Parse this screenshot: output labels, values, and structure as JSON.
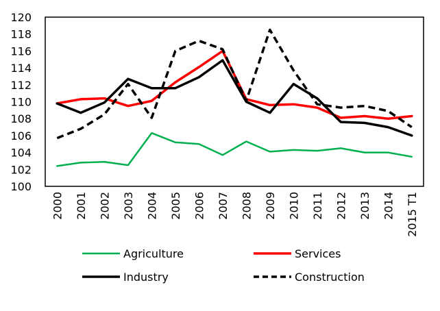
{
  "chart_data": {
    "type": "line",
    "title": "",
    "xlabel": "",
    "ylabel": "",
    "ylim": [
      100,
      120
    ],
    "yticks": [
      100,
      102,
      104,
      106,
      108,
      110,
      112,
      114,
      116,
      118,
      120
    ],
    "grid": false,
    "legend_position": "bottom",
    "categories": [
      "2000",
      "2001",
      "2002",
      "2003",
      "2004",
      "2005",
      "2006",
      "2007",
      "2008",
      "2009",
      "2010",
      "2011",
      "2012",
      "2013",
      "2014",
      "2015 T1"
    ],
    "series": [
      {
        "name": "Agriculture",
        "color": "#00B050",
        "dash": "solid",
        "values": [
          102.4,
          102.8,
          102.9,
          102.5,
          106.3,
          105.2,
          105.0,
          103.7,
          105.3,
          104.1,
          104.3,
          104.2,
          104.5,
          104.0,
          104.0,
          103.5
        ]
      },
      {
        "name": "Services",
        "color": "#FF0000",
        "dash": "solid",
        "values": [
          109.8,
          110.3,
          110.4,
          109.5,
          110.1,
          112.3,
          114.1,
          116.0,
          110.3,
          109.6,
          109.7,
          109.3,
          108.1,
          108.3,
          108.0,
          108.3
        ]
      },
      {
        "name": "Industry",
        "color": "#000000",
        "dash": "solid",
        "values": [
          109.8,
          108.7,
          109.9,
          112.7,
          111.6,
          111.6,
          112.9,
          114.9,
          110.0,
          108.7,
          112.1,
          110.4,
          107.6,
          107.5,
          107.0,
          106.0
        ]
      },
      {
        "name": "Construction",
        "color": "#000000",
        "dash": "dashed",
        "values": [
          105.7,
          106.8,
          108.5,
          112.1,
          108.1,
          116.0,
          117.2,
          116.2,
          110.1,
          118.5,
          113.7,
          109.7,
          109.3,
          109.5,
          108.9,
          107.0
        ]
      }
    ],
    "legend": [
      {
        "label": "Agriculture",
        "series": 0
      },
      {
        "label": "Services",
        "series": 1
      },
      {
        "label": "Industry",
        "series": 2
      },
      {
        "label": "Construction",
        "series": 3
      }
    ]
  }
}
